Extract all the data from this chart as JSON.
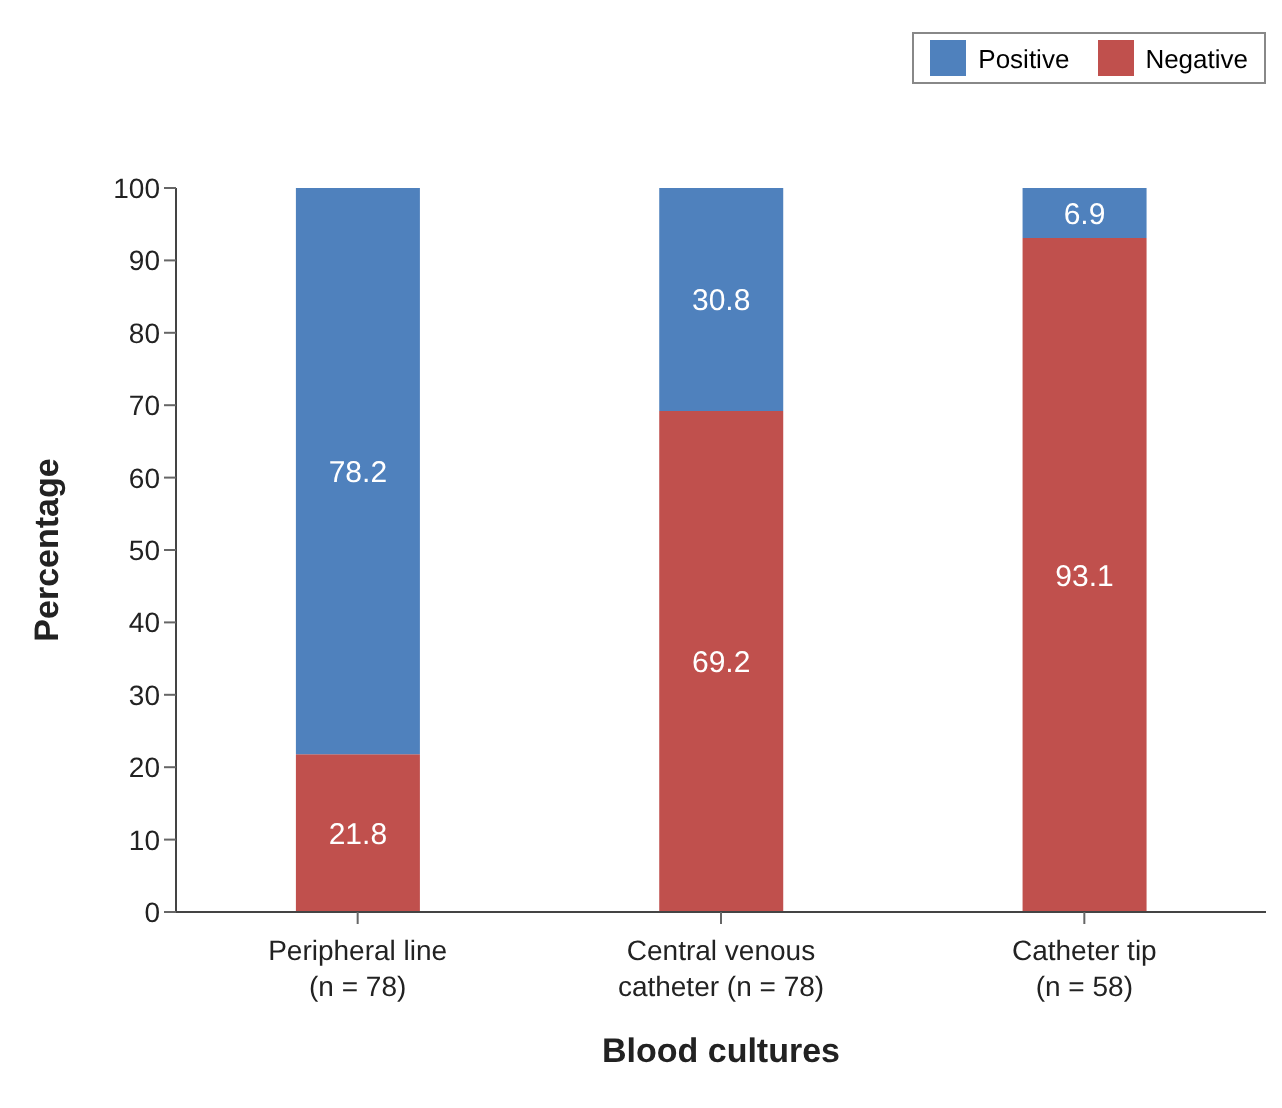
{
  "chart_data": {
    "type": "bar",
    "stacked": true,
    "xlabel": "Blood cultures",
    "ylabel": "Percentage",
    "categories": [
      "Peripheral line\n(n = 78)",
      "Central venous\ncatheter (n = 78)",
      "Catheter tip\n(n = 58)"
    ],
    "series": [
      {
        "name": "Negative",
        "color": "#c0504d",
        "values": [
          21.8,
          69.2,
          93.1
        ]
      },
      {
        "name": "Positive",
        "color": "#4f81bd",
        "values": [
          78.2,
          30.8,
          6.9
        ]
      }
    ],
    "ylim": [
      0,
      100
    ],
    "yticks": [
      0,
      10,
      20,
      30,
      40,
      50,
      60,
      70,
      80,
      90,
      100
    ],
    "legend": "top right",
    "data_labels": true
  }
}
